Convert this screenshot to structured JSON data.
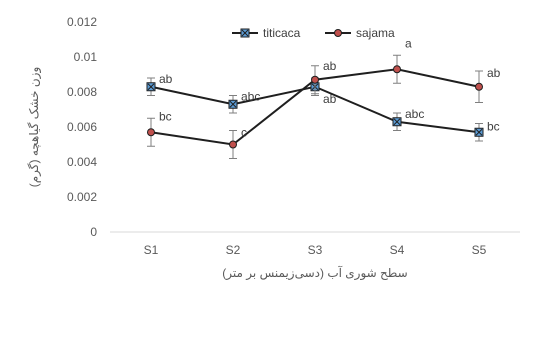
{
  "chart_data": {
    "type": "line",
    "title": "",
    "xlabel": "سطح شوری آب (دسی‌زیمنس بر متر)",
    "ylabel": "وزن خشک گیاهچه (گرم)",
    "categories": [
      "S1",
      "S2",
      "S3",
      "S4",
      "S5"
    ],
    "ylim": [
      0,
      0.012
    ],
    "yticks": [
      0,
      0.002,
      0.004,
      0.006,
      0.008,
      0.01,
      0.012
    ],
    "ytick_labels": [
      "0",
      "0.002",
      "0.004",
      "0.006",
      "0.008",
      "0.01",
      "0.012"
    ],
    "grid": false,
    "legend_position": "top-center",
    "series": [
      {
        "name": "titicaca",
        "marker": "square-x",
        "color": "#1f1f1f",
        "marker_color": "#5b9bd5",
        "values": [
          0.0083,
          0.0073,
          0.0083,
          0.0063,
          0.0057
        ],
        "errors": [
          0.0005,
          0.0005,
          0.0005,
          0.0005,
          0.0005
        ],
        "labels": [
          "ab",
          "abc",
          "ab",
          "abc",
          "bc"
        ]
      },
      {
        "name": "sajama",
        "marker": "circle",
        "color": "#1f1f1f",
        "marker_color": "#c0504d",
        "values": [
          0.0057,
          0.005,
          0.0087,
          0.0093,
          0.0083
        ],
        "errors": [
          0.0008,
          0.0008,
          0.0008,
          0.0008,
          0.0009
        ],
        "labels": [
          "bc",
          "c",
          "ab",
          "a",
          "ab"
        ]
      }
    ]
  }
}
